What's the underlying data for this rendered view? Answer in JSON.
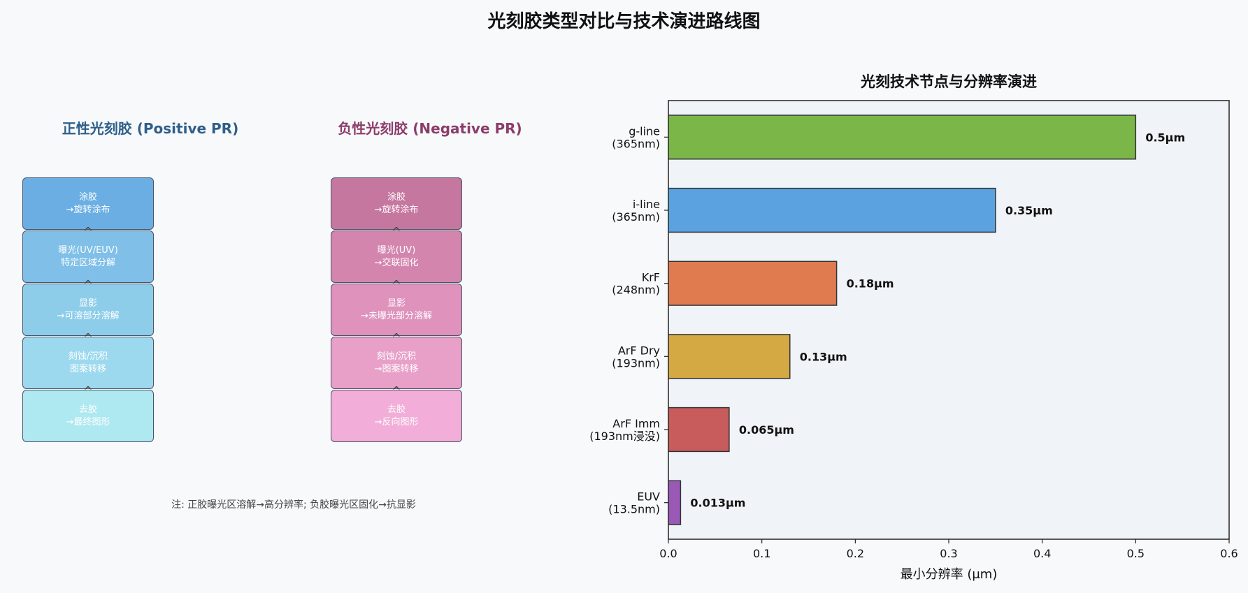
{
  "title": "光刻胶类型对比与技术演进路线图",
  "positive": {
    "title": "正性光刻胶 (Positive PR)",
    "steps": [
      {
        "line1": "涂胶",
        "line2": "→旋转涂布",
        "color": "#6aaee3"
      },
      {
        "line1": "曝光(UV/EUV)",
        "line2": "特定区域分解",
        "color": "#7fbfe8"
      },
      {
        "line1": "显影",
        "line2": "→可溶部分溶解",
        "color": "#8dcdea"
      },
      {
        "line1": "刻蚀/沉积",
        "line2": "图案转移",
        "color": "#9cd9ee"
      },
      {
        "line1": "去胶",
        "line2": "→最终图形",
        "color": "#aee8f0"
      }
    ]
  },
  "negative": {
    "title": "负性光刻胶 (Negative PR)",
    "steps": [
      {
        "line1": "涂胶",
        "line2": "→旋转涂布",
        "color": "#c6779f"
      },
      {
        "line1": "曝光(UV)",
        "line2": "→交联固化",
        "color": "#d385ae"
      },
      {
        "line1": "显影",
        "line2": "→未曝光部分溶解",
        "color": "#de92bc"
      },
      {
        "line1": "刻蚀/沉积",
        "line2": "→图案转移",
        "color": "#e8a0c8"
      },
      {
        "line1": "去胶",
        "line2": "→反向图形",
        "color": "#f2aed8"
      }
    ]
  },
  "arrow_glyph": "^",
  "note": "注: 正胶曝光区溶解→高分辨率; 负胶曝光区固化→抗显影",
  "chart_data": {
    "type": "bar",
    "orientation": "horizontal",
    "title": "光刻技术节点与分辨率演进",
    "xlabel": "最小分辨率 (μm)",
    "xlim": [
      0,
      0.6
    ],
    "xticks": [
      "0.0",
      "0.1",
      "0.2",
      "0.3",
      "0.4",
      "0.5",
      "0.6"
    ],
    "categories": [
      {
        "line1": "g-line",
        "line2": "(365nm)"
      },
      {
        "line1": "i-line",
        "line2": "(365nm)"
      },
      {
        "line1": "KrF",
        "line2": "(248nm)"
      },
      {
        "line1": "ArF Dry",
        "line2": "(193nm)"
      },
      {
        "line1": "ArF Imm",
        "line2": "(193nm浸没)"
      },
      {
        "line1": "EUV",
        "line2": "(13.5nm)"
      }
    ],
    "values": [
      0.5,
      0.35,
      0.18,
      0.13,
      0.065,
      0.013
    ],
    "value_labels": [
      "0.5μm",
      "0.35μm",
      "0.18μm",
      "0.13μm",
      "0.065μm",
      "0.013μm"
    ],
    "colors": [
      "#7ab648",
      "#5ba3e0",
      "#e07b4f",
      "#d4a843",
      "#c85c5c",
      "#9b59b6"
    ],
    "plot_bg": "#f0f3f8"
  }
}
